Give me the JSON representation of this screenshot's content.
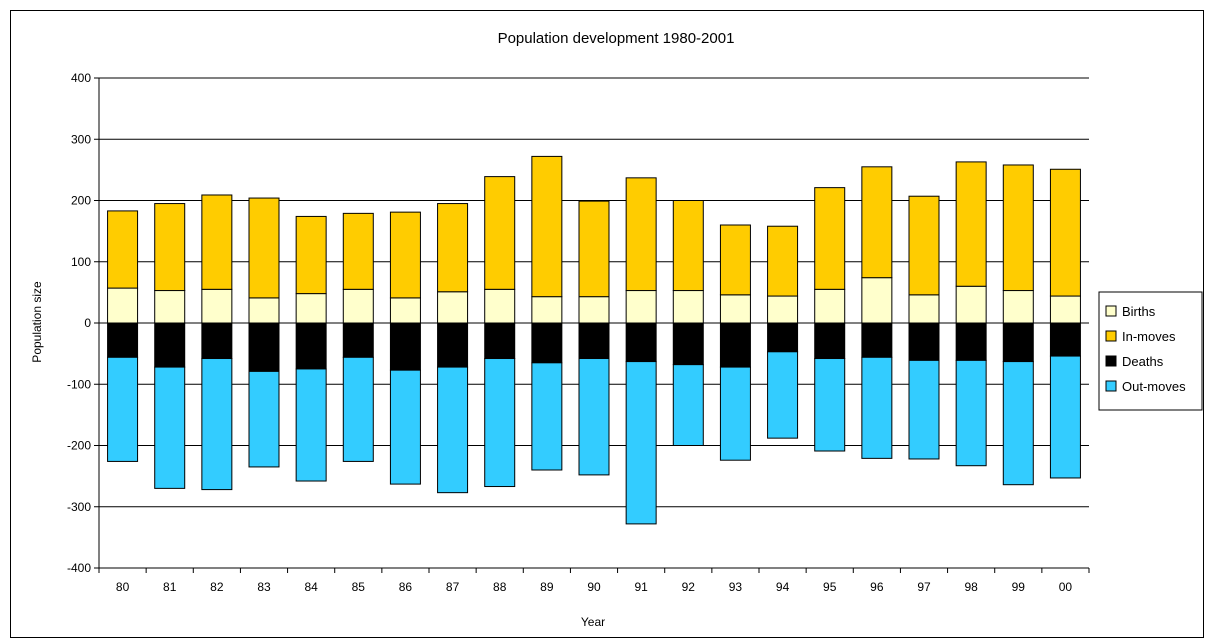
{
  "chart_data": {
    "type": "bar",
    "stacked": true,
    "title": "Population development 1980-2001",
    "xlabel": "Year",
    "ylabel": "Population size",
    "ylim": [
      -400,
      400
    ],
    "yticks": [
      400,
      300,
      200,
      100,
      0,
      -100,
      -200,
      -300,
      -400
    ],
    "grid": true,
    "legend_position": "right",
    "categories": [
      "80",
      "81",
      "82",
      "83",
      "84",
      "85",
      "86",
      "87",
      "88",
      "89",
      "90",
      "91",
      "92",
      "93",
      "94",
      "95",
      "96",
      "97",
      "98",
      "99",
      "00"
    ],
    "series": [
      {
        "name": "Births",
        "color": "#ffffcc",
        "values": [
          57,
          53,
          55,
          41,
          48,
          55,
          41,
          51,
          55,
          43,
          43,
          53,
          53,
          46,
          44,
          55,
          74,
          46,
          60,
          53,
          44
        ]
      },
      {
        "name": "In-moves",
        "color": "#ffcc00",
        "values": [
          126,
          142,
          154,
          163,
          126,
          124,
          140,
          144,
          184,
          229,
          156,
          184,
          147,
          114,
          114,
          166,
          181,
          161,
          203,
          205,
          207
        ]
      },
      {
        "name": "Deaths",
        "color": "#000000",
        "values": [
          -56,
          -72,
          -58,
          -79,
          -75,
          -56,
          -77,
          -72,
          -58,
          -65,
          -58,
          -63,
          -68,
          -72,
          -47,
          -58,
          -56,
          -61,
          -61,
          -63,
          -54
        ]
      },
      {
        "name": "Out-moves",
        "color": "#33ccff",
        "values": [
          -170,
          -198,
          -214,
          -156,
          -183,
          -170,
          -186,
          -205,
          -209,
          -175,
          -190,
          -265,
          -132,
          -152,
          -141,
          -151,
          -165,
          -161,
          -172,
          -201,
          -199
        ]
      }
    ]
  }
}
